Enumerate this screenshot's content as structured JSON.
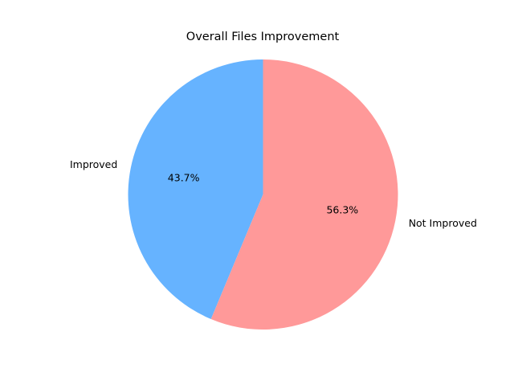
{
  "chart_data": {
    "type": "pie",
    "title": "Overall Files Improvement",
    "slices": [
      {
        "label": "Improved",
        "value": 43.7,
        "pct_label": "43.7%",
        "color": "#66b3ff"
      },
      {
        "label": "Not Improved",
        "value": 56.3,
        "pct_label": "56.3%",
        "color": "#ff9999"
      }
    ],
    "start_angle_deg": 90,
    "direction": "counterclockwise",
    "legend": "none"
  }
}
